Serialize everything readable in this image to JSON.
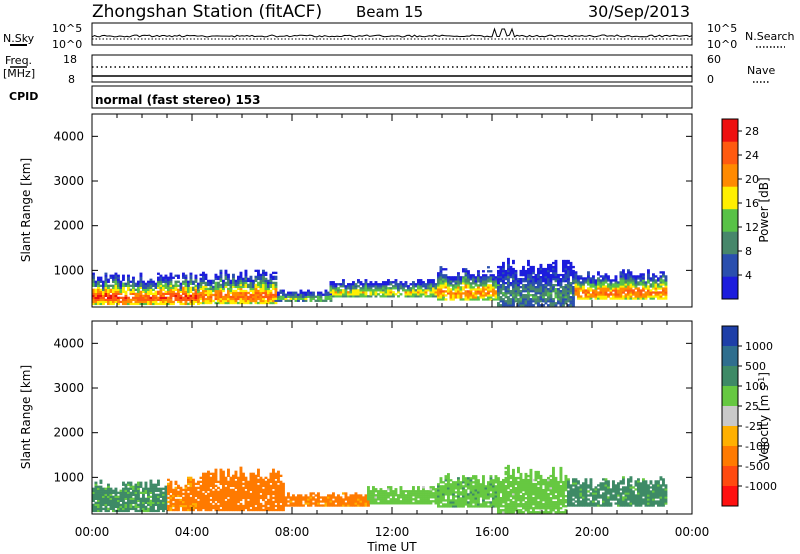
{
  "header": {
    "station": "Zhongshan Station (fitACF)",
    "beam": "Beam 15",
    "date": "30/Sep/2013"
  },
  "top_panels": {
    "nsky_label": "N.Sky",
    "nsky_ticks": [
      "10^5",
      "10^0"
    ],
    "nsearch_label": "N.Search",
    "nsearch_ticks": [
      "10^5",
      "10^0"
    ],
    "freq_label": "Freq.",
    "freq_unit": "[MHz]",
    "freq_ticks": [
      "18",
      "8"
    ],
    "nave_label": "Nave",
    "nave_ticks": [
      "60",
      "0"
    ],
    "cpid_label": "CPID",
    "cpid_text": "normal (fast stereo) 153"
  },
  "colors": {
    "power": [
      "#1c1cdc",
      "#2a4fae",
      "#47876b",
      "#58c247",
      "#ffef00",
      "#ff8a00",
      "#ff5a10",
      "#ee1010"
    ],
    "velocity": [
      "#1e3fa8",
      "#2f6e8e",
      "#3e8a66",
      "#66c841",
      "#c9c9c9",
      "#ffb000",
      "#ff7a00",
      "#ff4a10",
      "#ff1010"
    ],
    "ground_scatter": "#a0a0a0"
  },
  "chart_data": [
    {
      "type": "heatmap",
      "name": "power",
      "ylabel": "Slant Range [km]",
      "yticks": [
        "1000",
        "2000",
        "3000",
        "4000"
      ],
      "ylim": [
        180,
        4500
      ],
      "xlim": [
        0,
        24
      ],
      "xticks": [
        "00:00",
        "04:00",
        "08:00",
        "12:00",
        "16:00",
        "20:00",
        "00:00"
      ],
      "colorbar_label": "Power [dB]",
      "colorbar_ticks": [
        "4",
        "8",
        "12",
        "16",
        "20",
        "24",
        "28"
      ],
      "colorbar_range": [
        0,
        30
      ],
      "scatter_regions": [
        {
          "t_start": 0.0,
          "t_end": 4.3,
          "range_start": 230,
          "range_end": 950,
          "peak_db": 26
        },
        {
          "t_start": 4.3,
          "t_end": 7.3,
          "range_start": 250,
          "range_end": 1000,
          "peak_db": 24
        },
        {
          "t_start": 7.3,
          "t_end": 9.5,
          "range_start": 300,
          "range_end": 550,
          "peak_db": 14
        },
        {
          "t_start": 9.5,
          "t_end": 13.8,
          "range_start": 400,
          "range_end": 800,
          "peak_db": 18
        },
        {
          "t_start": 13.8,
          "t_end": 16.2,
          "range_start": 330,
          "range_end": 1100,
          "peak_db": 22
        },
        {
          "t_start": 16.2,
          "t_end": 19.3,
          "range_start": 200,
          "range_end": 1250,
          "peak_db": 10
        },
        {
          "t_start": 19.3,
          "t_end": 23.0,
          "range_start": 350,
          "range_end": 1000,
          "peak_db": 24
        }
      ]
    },
    {
      "type": "heatmap",
      "name": "velocity",
      "ylabel": "Slant Range [km]",
      "yticks": [
        "1000",
        "2000",
        "3000",
        "4000"
      ],
      "ylim": [
        180,
        4500
      ],
      "xlim": [
        0,
        24
      ],
      "xticks": [
        "00:00",
        "04:00",
        "08:00",
        "12:00",
        "16:00",
        "20:00",
        "00:00"
      ],
      "xlabel": "Time UT",
      "colorbar_label": "Velocity [m s^-1]",
      "colorbar_ticks": [
        "1000",
        "500",
        "100",
        "25",
        "-25",
        "-100",
        "-500",
        "-1000"
      ],
      "colorbar_range": [
        -1000,
        1000
      ],
      "scatter_regions": [
        {
          "t_start": 0.0,
          "t_end": 3.0,
          "range_start": 230,
          "range_end": 950,
          "velocity": 150
        },
        {
          "t_start": 3.0,
          "t_end": 4.2,
          "range_start": 250,
          "range_end": 1000,
          "velocity": -150
        },
        {
          "t_start": 4.2,
          "t_end": 7.6,
          "range_start": 250,
          "range_end": 1200,
          "velocity": -300
        },
        {
          "t_start": 7.6,
          "t_end": 11.0,
          "range_start": 350,
          "range_end": 650,
          "velocity": -200
        },
        {
          "t_start": 11.0,
          "t_end": 13.8,
          "range_start": 400,
          "range_end": 800,
          "velocity": 60
        },
        {
          "t_start": 13.8,
          "t_end": 16.2,
          "range_start": 330,
          "range_end": 1100,
          "velocity": 70
        },
        {
          "t_start": 16.2,
          "t_end": 19.0,
          "range_start": 200,
          "range_end": 1250,
          "velocity": 60
        },
        {
          "t_start": 19.0,
          "t_end": 23.0,
          "range_start": 350,
          "range_end": 1000,
          "velocity": 200
        }
      ]
    }
  ]
}
